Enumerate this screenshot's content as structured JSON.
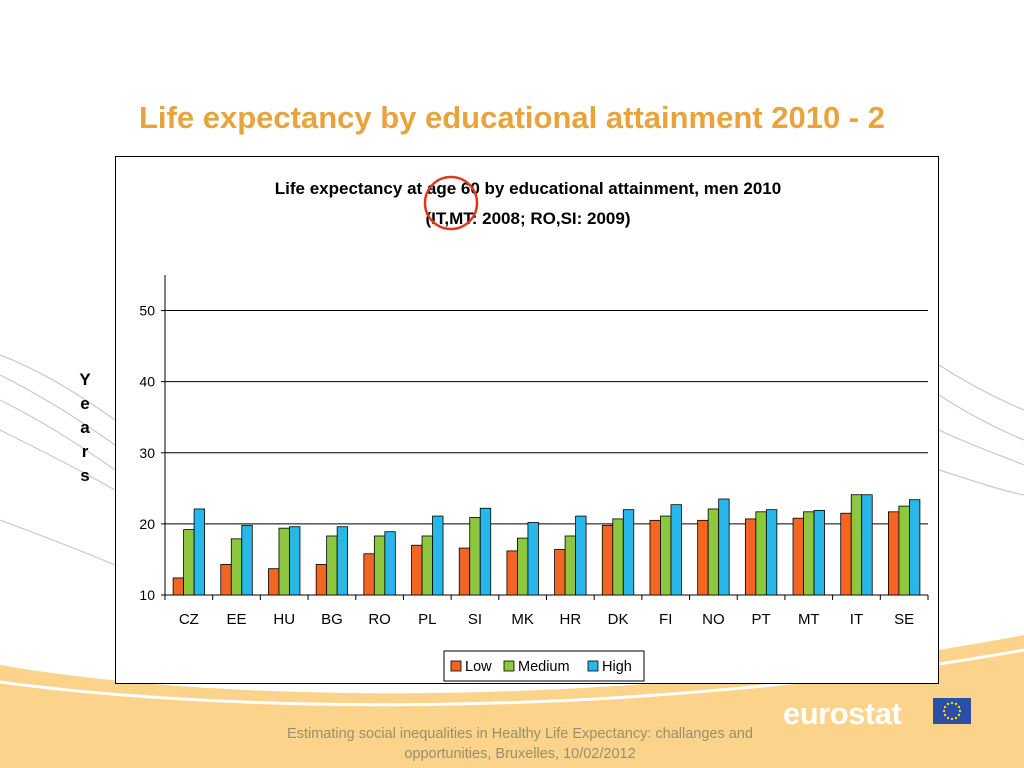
{
  "slide": {
    "title": "Life expectancy by educational attainment 2010 - 2",
    "footer_line1": "Estimating social inequalities in Healthy Life Expectancy: challanges and",
    "footer_line2": "opportunities, Bruxelles, 10/02/2012",
    "logo_text": "eurostat",
    "y_axis_label": "Years"
  },
  "colors": {
    "title": "#E8A33D",
    "low": "#F26522",
    "medium": "#8DC63F",
    "high": "#29B6E8",
    "background_wave": "#FBD38A"
  },
  "chart_data": {
    "type": "bar",
    "title_line1": "Life expectancy at age 60 by educational attainment, men 2010",
    "title_line2": "(IT,MT: 2008; RO,SI: 2009)",
    "ylabel": "Years",
    "ylim": [
      10,
      55
    ],
    "yticks": [
      10,
      20,
      30,
      40,
      50
    ],
    "grid": true,
    "legend_position": "bottom",
    "annotation": "red circle around '60'",
    "categories": [
      "CZ",
      "EE",
      "HU",
      "BG",
      "RO",
      "PL",
      "SI",
      "MK",
      "HR",
      "DK",
      "FI",
      "NO",
      "PT",
      "MT",
      "IT",
      "SE"
    ],
    "series": [
      {
        "name": "Low",
        "values": [
          12.4,
          14.3,
          13.7,
          14.3,
          15.8,
          17.0,
          16.6,
          16.2,
          16.4,
          19.8,
          20.5,
          20.5,
          20.7,
          20.8,
          21.5,
          21.7
        ]
      },
      {
        "name": "Medium",
        "values": [
          19.2,
          17.9,
          19.4,
          18.3,
          18.3,
          18.3,
          20.9,
          18.0,
          18.3,
          20.7,
          21.1,
          22.1,
          21.7,
          21.7,
          24.1,
          22.5
        ]
      },
      {
        "name": "High",
        "values": [
          22.1,
          19.8,
          19.6,
          19.6,
          18.9,
          21.1,
          22.2,
          20.2,
          21.1,
          22.0,
          22.7,
          23.5,
          22.0,
          21.9,
          24.1,
          23.4
        ]
      }
    ]
  }
}
